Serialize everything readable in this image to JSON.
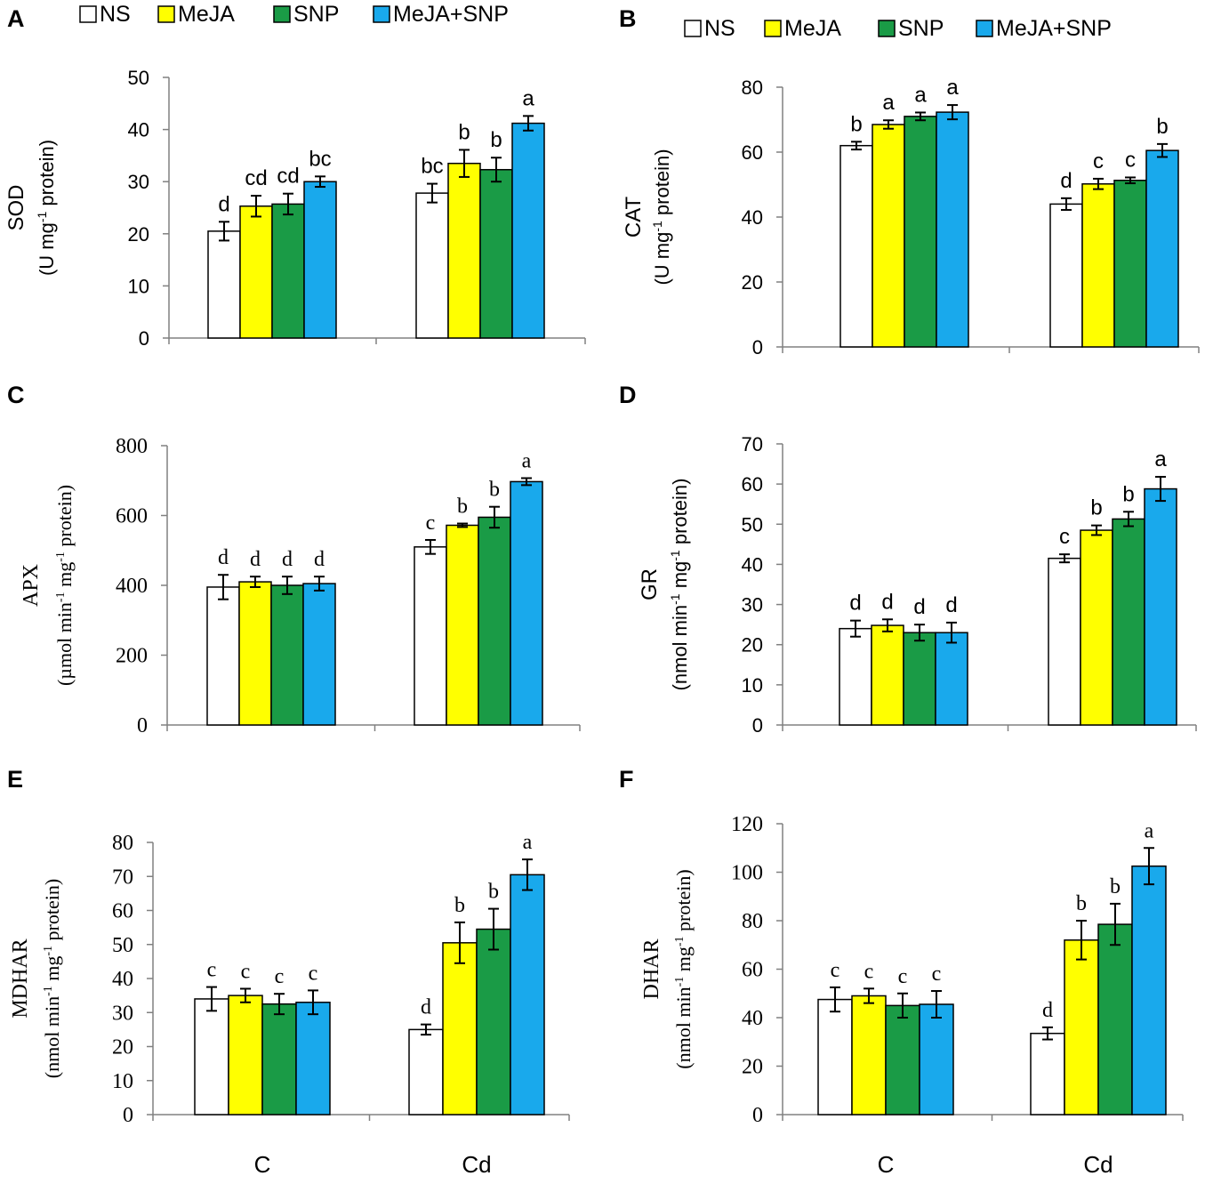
{
  "colors": {
    "NS": "#ffffff",
    "MeJA": "#ffff00",
    "SNP": "#1a9b46",
    "MeJA+SNP": "#19a9ec"
  },
  "series_names": [
    "NS",
    "MeJA",
    "SNP",
    "MeJA+SNP"
  ],
  "chart_data": [
    {
      "panel": "A",
      "type": "bar",
      "ylabel": "SOD",
      "yunit": "(U  mg-1 protein)",
      "categories": [
        "C",
        "Cd"
      ],
      "ylim": [
        0,
        50
      ],
      "yticks": [
        0,
        10,
        20,
        30,
        40,
        50
      ],
      "series": [
        {
          "name": "NS",
          "values": [
            20.5,
            27.8
          ],
          "errors": [
            1.8,
            1.8
          ],
          "letters": [
            "d",
            "bc"
          ]
        },
        {
          "name": "MeJA",
          "values": [
            25.3,
            33.5
          ],
          "errors": [
            2.0,
            2.6
          ],
          "letters": [
            "cd",
            "b"
          ]
        },
        {
          "name": "SNP",
          "values": [
            25.7,
            32.3
          ],
          "errors": [
            2.0,
            2.3
          ],
          "letters": [
            "cd",
            "b"
          ]
        },
        {
          "name": "MeJA+SNP",
          "values": [
            30.0,
            41.2
          ],
          "errors": [
            1.0,
            1.4
          ],
          "letters": [
            "bc",
            "a"
          ]
        }
      ],
      "xlabels_visible": false
    },
    {
      "panel": "B",
      "type": "bar",
      "ylabel": "CAT",
      "yunit": "(U  mg-1 protein)",
      "categories": [
        "C",
        "Cd"
      ],
      "ylim": [
        0,
        80
      ],
      "yticks": [
        0,
        20,
        40,
        60,
        80
      ],
      "series": [
        {
          "name": "NS",
          "values": [
            62.0,
            44.0
          ],
          "errors": [
            1.2,
            1.8
          ],
          "letters": [
            "b",
            "d"
          ]
        },
        {
          "name": "MeJA",
          "values": [
            68.5,
            50.2
          ],
          "errors": [
            1.3,
            1.6
          ],
          "letters": [
            "a",
            "c"
          ]
        },
        {
          "name": "SNP",
          "values": [
            71.0,
            51.3
          ],
          "errors": [
            1.2,
            0.9
          ],
          "letters": [
            "a",
            "c"
          ]
        },
        {
          "name": "MeJA+SNP",
          "values": [
            72.3,
            60.5
          ],
          "errors": [
            2.2,
            2.0
          ],
          "letters": [
            "a",
            "b"
          ]
        }
      ],
      "xlabels_visible": false
    },
    {
      "panel": "C",
      "type": "bar",
      "ylabel": "APX",
      "yunit": "(µmol min-1 mg-1 protein)",
      "categories": [
        "C",
        "Cd"
      ],
      "ylim": [
        0,
        800
      ],
      "yticks": [
        0,
        200,
        400,
        600,
        800
      ],
      "series": [
        {
          "name": "NS",
          "values": [
            395,
            510
          ],
          "errors": [
            35,
            20
          ],
          "letters": [
            "d",
            "c"
          ]
        },
        {
          "name": "MeJA",
          "values": [
            410,
            572
          ],
          "errors": [
            15,
            5
          ],
          "letters": [
            "d",
            "b"
          ]
        },
        {
          "name": "SNP",
          "values": [
            400,
            595
          ],
          "errors": [
            25,
            30
          ],
          "letters": [
            "d",
            "b"
          ]
        },
        {
          "name": "MeJA+SNP",
          "values": [
            405,
            697
          ],
          "errors": [
            20,
            10
          ],
          "letters": [
            "d",
            "a"
          ]
        }
      ],
      "xlabels_visible": false
    },
    {
      "panel": "D",
      "type": "bar",
      "ylabel": "GR",
      "yunit": "(nmol min-1 mg-1 protein)",
      "categories": [
        "C",
        "Cd"
      ],
      "ylim": [
        0,
        70
      ],
      "yticks": [
        0,
        10,
        20,
        30,
        40,
        50,
        60,
        70
      ],
      "series": [
        {
          "name": "NS",
          "values": [
            24.0,
            41.5
          ],
          "errors": [
            2.0,
            1.0
          ],
          "letters": [
            "d",
            "c"
          ]
        },
        {
          "name": "MeJA",
          "values": [
            24.8,
            48.5
          ],
          "errors": [
            1.5,
            1.2
          ],
          "letters": [
            "d",
            "b"
          ]
        },
        {
          "name": "SNP",
          "values": [
            23.0,
            51.3
          ],
          "errors": [
            2.0,
            1.8
          ],
          "letters": [
            "d",
            "b"
          ]
        },
        {
          "name": "MeJA+SNP",
          "values": [
            23.0,
            58.8
          ],
          "errors": [
            2.5,
            3.0
          ],
          "letters": [
            "d",
            "a"
          ]
        }
      ],
      "xlabels_visible": false
    },
    {
      "panel": "E",
      "type": "bar",
      "ylabel": "MDHAR",
      "yunit": "(nmol min-1 mg-1 protein)",
      "categories": [
        "C",
        "Cd"
      ],
      "ylim": [
        0,
        80
      ],
      "yticks": [
        0,
        10,
        20,
        30,
        40,
        50,
        60,
        70,
        80
      ],
      "series": [
        {
          "name": "NS",
          "values": [
            34.0,
            25.0
          ],
          "errors": [
            3.5,
            1.5
          ],
          "letters": [
            "c",
            "d"
          ]
        },
        {
          "name": "MeJA",
          "values": [
            35.0,
            50.5
          ],
          "errors": [
            2.0,
            6.0
          ],
          "letters": [
            "c",
            "b"
          ]
        },
        {
          "name": "SNP",
          "values": [
            32.5,
            54.5
          ],
          "errors": [
            3.0,
            6.0
          ],
          "letters": [
            "c",
            "b"
          ]
        },
        {
          "name": "MeJA+SNP",
          "values": [
            33.0,
            70.5
          ],
          "errors": [
            3.5,
            4.5
          ],
          "letters": [
            "c",
            "a"
          ]
        }
      ],
      "xlabels_visible": true
    },
    {
      "panel": "F",
      "type": "bar",
      "ylabel": "DHAR",
      "yunit": "(nmol min-1 mg-1 protein)",
      "categories": [
        "C",
        "Cd"
      ],
      "ylim": [
        0,
        120
      ],
      "yticks": [
        0,
        20,
        40,
        60,
        80,
        100,
        120
      ],
      "series": [
        {
          "name": "NS",
          "values": [
            47.5,
            33.5
          ],
          "errors": [
            5.0,
            2.5
          ],
          "letters": [
            "c",
            "d"
          ]
        },
        {
          "name": "MeJA",
          "values": [
            49.0,
            72.0
          ],
          "errors": [
            3.0,
            8.0
          ],
          "letters": [
            "c",
            "b"
          ]
        },
        {
          "name": "SNP",
          "values": [
            45.0,
            78.5
          ],
          "errors": [
            5.0,
            8.5
          ],
          "letters": [
            "c",
            "b"
          ]
        },
        {
          "name": "MeJA+SNP",
          "values": [
            45.5,
            102.5
          ],
          "errors": [
            5.5,
            7.5
          ],
          "letters": [
            "c",
            "a"
          ]
        }
      ],
      "xlabels_visible": true
    }
  ]
}
